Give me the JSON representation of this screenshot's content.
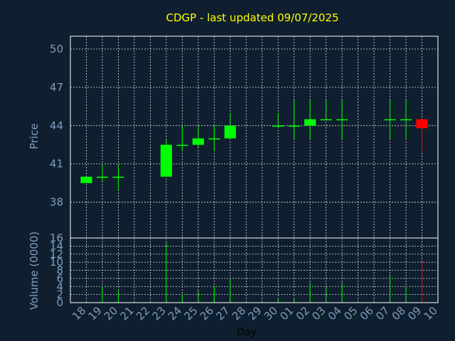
{
  "chart_data": {
    "type": "candlestick",
    "title": "CDGP - last updated 09/07/2025",
    "xlabel": "Day",
    "price_panel": {
      "ylabel": "Price",
      "yticks": [
        38,
        41,
        44,
        47,
        50
      ],
      "ylim": [
        35.2,
        51
      ]
    },
    "volume_panel": {
      "ylabel": "Volume (0000)",
      "yticks": [
        0,
        2,
        4,
        6,
        8,
        10,
        12,
        14,
        16
      ],
      "ylim": [
        0,
        16
      ]
    },
    "x_ticks": [
      "18",
      "19",
      "20",
      "21",
      "22",
      "23",
      "24",
      "25",
      "26",
      "27",
      "28",
      "29",
      "30",
      "01",
      "02",
      "03",
      "04",
      "05",
      "06",
      "07",
      "08",
      "09",
      "10"
    ],
    "grid": true,
    "colors": {
      "up": "#00ff00",
      "down": "#ff0000",
      "title": "#ffff00",
      "axis_text": "#7f9ec0",
      "background": "#0f1f2f"
    },
    "candles": [
      {
        "day": "18",
        "open": 39.5,
        "high": 40.0,
        "low": 39.5,
        "close": 40.0,
        "volume": 0
      },
      {
        "day": "19",
        "open": 40.0,
        "high": 41.0,
        "low": 39.6,
        "close": 40.0,
        "volume": 4
      },
      {
        "day": "20",
        "open": 40.0,
        "high": 41.0,
        "low": 39.0,
        "close": 40.0,
        "volume": 3
      },
      {
        "day": "23",
        "open": 40.0,
        "high": 43.0,
        "low": 40.0,
        "close": 42.5,
        "volume": 15
      },
      {
        "day": "24",
        "open": 42.5,
        "high": 44.0,
        "low": 42.0,
        "close": 42.5,
        "volume": 2
      },
      {
        "day": "25",
        "open": 42.5,
        "high": 44.0,
        "low": 42.3,
        "close": 43.0,
        "volume": 3
      },
      {
        "day": "26",
        "open": 43.0,
        "high": 44.0,
        "low": 42.0,
        "close": 43.0,
        "volume": 4
      },
      {
        "day": "27",
        "open": 43.0,
        "high": 45.0,
        "low": 43.0,
        "close": 44.0,
        "volume": 6
      },
      {
        "day": "30",
        "open": 44.0,
        "high": 45.0,
        "low": 43.8,
        "close": 44.0,
        "volume": 1
      },
      {
        "day": "01",
        "open": 44.0,
        "high": 46.0,
        "low": 43.0,
        "close": 44.0,
        "volume": 1
      },
      {
        "day": "02",
        "open": 44.0,
        "high": 46.0,
        "low": 43.0,
        "close": 44.5,
        "volume": 5
      },
      {
        "day": "03",
        "open": 44.5,
        "high": 46.0,
        "low": 44.5,
        "close": 44.5,
        "volume": 4
      },
      {
        "day": "04",
        "open": 44.5,
        "high": 46.0,
        "low": 43.0,
        "close": 44.5,
        "volume": 5
      },
      {
        "day": "07",
        "open": 44.5,
        "high": 46.0,
        "low": 43.0,
        "close": 44.5,
        "volume": 7
      },
      {
        "day": "08",
        "open": 44.5,
        "high": 46.0,
        "low": 43.0,
        "close": 44.5,
        "volume": 4
      },
      {
        "day": "09",
        "open": 44.5,
        "high": 44.5,
        "low": 42.0,
        "close": 43.8,
        "volume": 10
      }
    ]
  }
}
